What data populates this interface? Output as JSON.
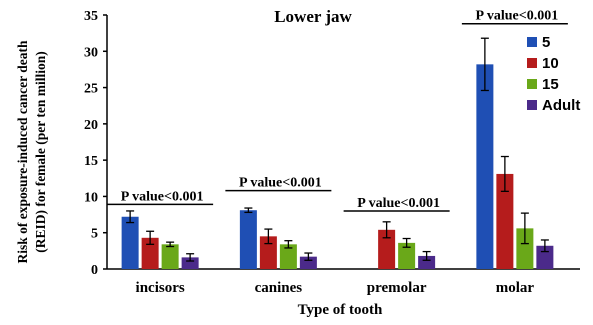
{
  "chart_data": {
    "type": "bar",
    "title": "Lower jaw",
    "xlabel": "Type of tooth",
    "ylabel_lines": [
      "Risk of exposure-induced cancer death",
      "(REID) for female (per ten million)"
    ],
    "ylim": [
      0,
      35
    ],
    "yticks": [
      "0",
      "5",
      "10",
      "15",
      "20",
      "25",
      "30",
      "35"
    ],
    "categories": [
      "incisors",
      "canines",
      "premolar",
      "molar"
    ],
    "series": [
      {
        "name": "5",
        "color": "#1f4fb4",
        "values": [
          7.2,
          8.1,
          null,
          28.2
        ],
        "errors": [
          0.8,
          0.3,
          null,
          3.6
        ]
      },
      {
        "name": "10",
        "color": "#b51c1c",
        "values": [
          4.3,
          4.5,
          5.4,
          13.1
        ],
        "errors": [
          0.9,
          1.0,
          1.1,
          2.4
        ]
      },
      {
        "name": "15",
        "color": "#6aa819",
        "values": [
          3.4,
          3.4,
          3.6,
          5.6
        ],
        "errors": [
          0.3,
          0.5,
          0.6,
          2.1
        ]
      },
      {
        "name": "Adult",
        "color": "#4b2a8a",
        "values": [
          1.6,
          1.7,
          1.8,
          3.2
        ],
        "errors": [
          0.5,
          0.5,
          0.6,
          0.8
        ]
      }
    ],
    "annotations": [
      {
        "text": "P value<0.001",
        "category": "incisors",
        "y": 8.9
      },
      {
        "text": "P value<0.001",
        "category": "canines",
        "y": 10.8
      },
      {
        "text": "P value<0.001",
        "category": "premolar",
        "y": 8.0
      },
      {
        "text": "P value<0.001",
        "category": "molar",
        "y": 33.8
      }
    ],
    "legend": "top-right",
    "grid": false
  }
}
